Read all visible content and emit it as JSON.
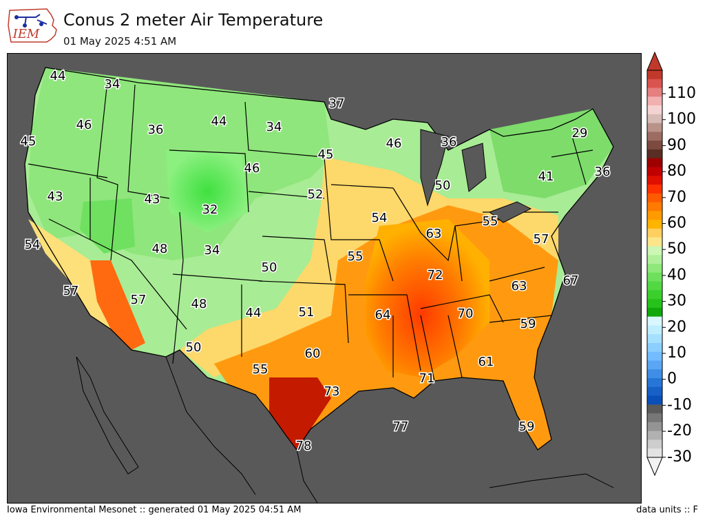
{
  "header": {
    "title": "Conus 2 meter Air Temperature",
    "subtitle": "01 May 2025 4:51 AM",
    "logo_text": "IEM"
  },
  "footer": {
    "left": "Iowa Environmental Mesonet :: generated 01 May 2025 04:51 AM",
    "right": "data units :: F"
  },
  "colorbar": {
    "ticks": [
      "110",
      "100",
      "90",
      "80",
      "70",
      "60",
      "50",
      "40",
      "30",
      "20",
      "10",
      "0",
      "-10",
      "-20",
      "-30"
    ]
  },
  "colors": {
    "ocean": "#595959",
    "warm": "#e05a00",
    "hot": "#b30000",
    "cool": "#66d95a",
    "mild": "#fde07a"
  },
  "map_labels": [
    "44",
    "34",
    "37",
    "46",
    "36",
    "44",
    "34",
    "45",
    "46",
    "45",
    "46",
    "36",
    "29",
    "43",
    "43",
    "32",
    "52",
    "50",
    "41",
    "36",
    "54",
    "48",
    "34",
    "54",
    "63",
    "55",
    "57",
    "50",
    "55",
    "72",
    "63",
    "67",
    "57",
    "57",
    "48",
    "44",
    "51",
    "64",
    "70",
    "59",
    "50",
    "60",
    "61",
    "55",
    "71",
    "73",
    "77",
    "59",
    "78"
  ]
}
